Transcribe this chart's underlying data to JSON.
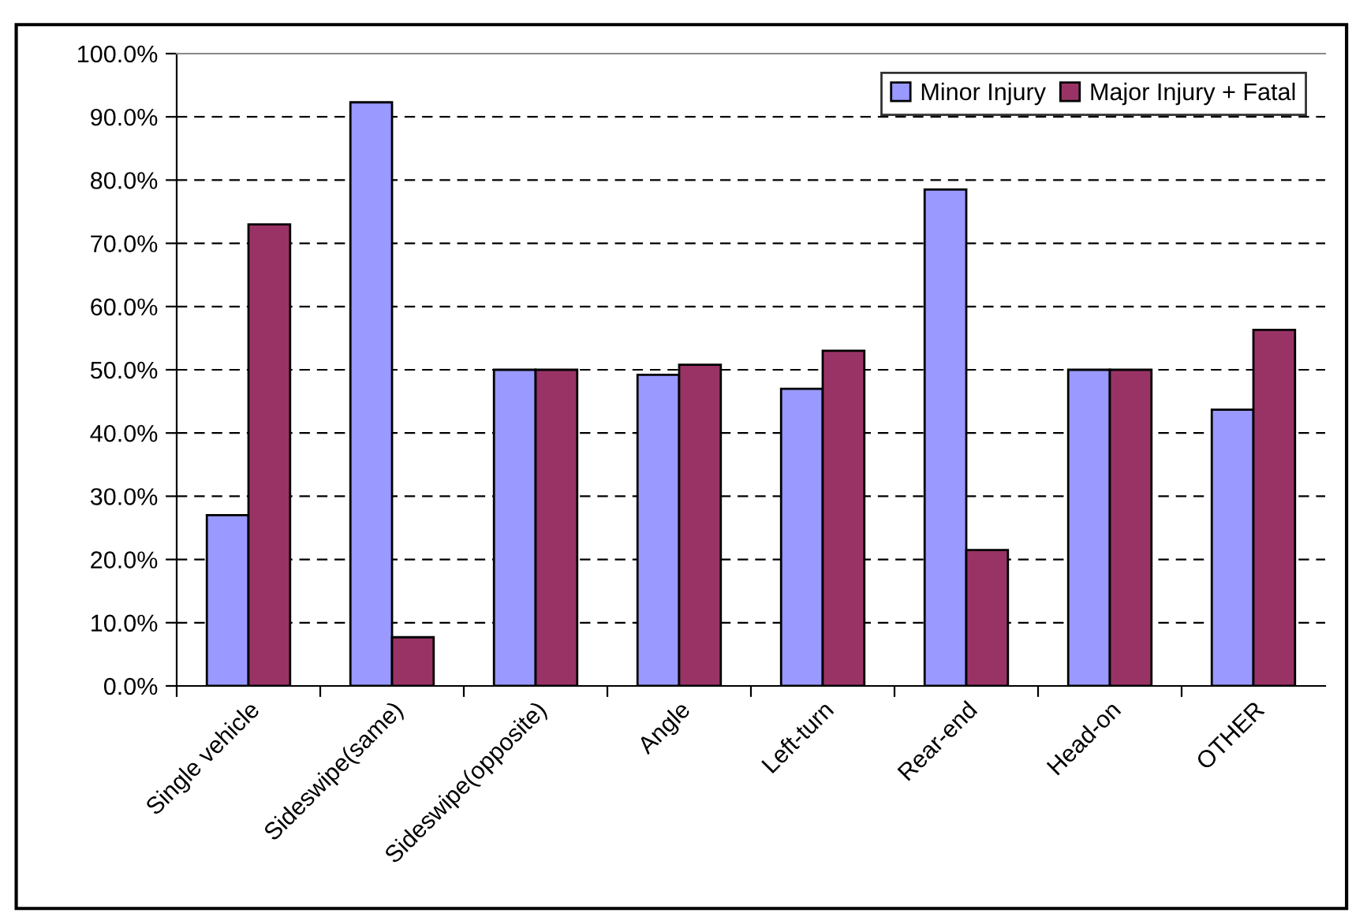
{
  "chart_data": {
    "type": "bar",
    "categories": [
      "Single vehicle",
      "Sideswipe(same)",
      "Sideswipe(opposite)",
      "Angle",
      "Left-turn",
      "Rear-end",
      "Head-on",
      "OTHER"
    ],
    "series": [
      {
        "name": "Minor Injury",
        "color": "#9999ff",
        "values": [
          27,
          92.3,
          50,
          49.2,
          47,
          78.5,
          50,
          43.7
        ]
      },
      {
        "name": "Major Injury + Fatal",
        "color": "#993366",
        "values": [
          73,
          7.7,
          50,
          50.8,
          53,
          21.5,
          50,
          56.3
        ]
      }
    ],
    "ylim": [
      0,
      100
    ],
    "yticks": [
      {
        "value": 0,
        "label": "0.0%"
      },
      {
        "value": 10,
        "label": "10.0%"
      },
      {
        "value": 20,
        "label": "20.0%"
      },
      {
        "value": 30,
        "label": "30.0%"
      },
      {
        "value": 40,
        "label": "40.0%"
      },
      {
        "value": 50,
        "label": "50.0%"
      },
      {
        "value": 60,
        "label": "60.0%"
      },
      {
        "value": 70,
        "label": "70.0%"
      },
      {
        "value": 80,
        "label": "80.0%"
      },
      {
        "value": 90,
        "label": "90.0%"
      },
      {
        "value": 100,
        "label": "100.0%"
      }
    ],
    "grid": "y",
    "line_style": "dashed",
    "legend": "top right"
  }
}
